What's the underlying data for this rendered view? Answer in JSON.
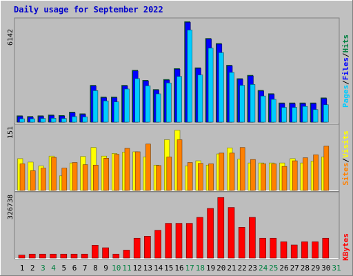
{
  "title": "Daily usage for September 2022",
  "colors": {
    "background": "#C0C0C0",
    "plot_background": "#BDBDBD",
    "title": "#0000CC",
    "hits": "#008040",
    "files": "#0000FF",
    "pages": "#00CCFF",
    "visits": "#FFFF00",
    "sites": "#FF8000",
    "kbytes": "#FF0000"
  },
  "chart_data": [
    {
      "type": "bar",
      "name": "hits-files-pages",
      "ymax_label": "6142",
      "ylim": [
        0,
        6142
      ],
      "axis_label_parts": [
        "Pages",
        "/",
        "Files",
        "/",
        "Hits"
      ],
      "x": [
        1,
        2,
        3,
        4,
        5,
        6,
        7,
        8,
        9,
        10,
        11,
        12,
        13,
        14,
        15,
        16,
        17,
        18,
        19,
        20,
        21,
        22,
        23,
        24,
        25,
        26,
        27,
        28,
        29,
        30,
        31
      ],
      "series": [
        {
          "name": "Hits",
          "values": [
            380,
            340,
            380,
            430,
            400,
            600,
            500,
            2200,
            1500,
            1500,
            2200,
            3100,
            2500,
            1950,
            2550,
            3200,
            6000,
            3250,
            5000,
            4700,
            3400,
            2600,
            2800,
            1900,
            1700,
            1150,
            1150,
            1150,
            1150,
            1450,
            0
          ]
        },
        {
          "name": "Files",
          "values": [
            380,
            340,
            380,
            430,
            400,
            600,
            500,
            2200,
            1500,
            1500,
            2200,
            3100,
            2500,
            1950,
            2550,
            3200,
            6000,
            3250,
            5000,
            4700,
            3400,
            2600,
            2800,
            1900,
            1700,
            1150,
            1150,
            1150,
            1150,
            1450,
            0
          ]
        },
        {
          "name": "Pages",
          "values": [
            200,
            200,
            220,
            230,
            220,
            330,
            310,
            1880,
            1270,
            1210,
            1980,
            2600,
            2170,
            1690,
            2340,
            2730,
            5500,
            2820,
            4420,
            4150,
            2970,
            2200,
            2250,
            1560,
            1360,
            880,
            880,
            940,
            750,
            1040,
            0
          ]
        }
      ]
    },
    {
      "type": "bar",
      "name": "visits-sites",
      "ymax_label": "151",
      "ylim": [
        0,
        151
      ],
      "axis_label_parts": [
        "Sites",
        "/",
        "Visits"
      ],
      "x": [
        1,
        2,
        3,
        4,
        5,
        6,
        7,
        8,
        9,
        10,
        11,
        12,
        13,
        14,
        15,
        16,
        17,
        18,
        19,
        20,
        21,
        22,
        23,
        24,
        25,
        26,
        27,
        28,
        29,
        30,
        31
      ],
      "series": [
        {
          "name": "Visits",
          "values": [
            74,
            66,
            57,
            80,
            34,
            64,
            79,
            100,
            80,
            86,
            89,
            90,
            78,
            59,
            118,
            140,
            57,
            69,
            59,
            85,
            99,
            73,
            64,
            64,
            64,
            64,
            74,
            64,
            68,
            78,
            0
          ]
        },
        {
          "name": "Sites",
          "values": [
            62,
            46,
            52,
            77,
            52,
            65,
            60,
            59,
            75,
            84,
            98,
            90,
            108,
            58,
            78,
            118,
            65,
            63,
            62,
            87,
            87,
            100,
            72,
            62,
            62,
            56,
            69,
            76,
            83,
            103,
            0
          ]
        }
      ]
    },
    {
      "type": "bar",
      "name": "kbytes",
      "ymax_label": "326738",
      "ylim": [
        0,
        326738
      ],
      "axis_label_parts": [
        "KBytes"
      ],
      "x": [
        1,
        2,
        3,
        4,
        5,
        6,
        7,
        8,
        9,
        10,
        11,
        12,
        13,
        14,
        15,
        16,
        17,
        18,
        19,
        20,
        21,
        22,
        23,
        24,
        25,
        26,
        27,
        28,
        29,
        30,
        31
      ],
      "series": [
        {
          "name": "KBytes",
          "values": [
            15000,
            20000,
            20000,
            20000,
            20000,
            20000,
            20000,
            65000,
            52000,
            20000,
            40000,
            100000,
            110000,
            140000,
            175000,
            175000,
            175000,
            205000,
            250000,
            305000,
            255000,
            155000,
            205000,
            100000,
            100000,
            82000,
            66000,
            82000,
            82000,
            100000,
            0
          ]
        }
      ]
    }
  ]
}
